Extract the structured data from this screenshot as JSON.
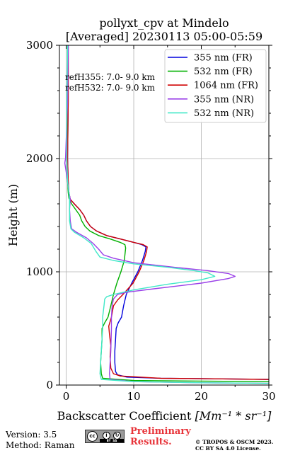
{
  "chart_data": {
    "type": "line",
    "title": "pollyxt_cpv at Mindelo",
    "subtitle": "[Averaged] 20230113 05:00-05:59",
    "xlabel": "Backscatter Coefficient",
    "xlabel_unit": "[Mm⁻¹ * sr⁻¹]",
    "ylabel": "Height (m)",
    "xlim": [
      -1,
      30
    ],
    "ylim": [
      0,
      3000
    ],
    "xticks": [
      "0",
      "10",
      "20",
      "30"
    ],
    "yticks": [
      "0",
      "1000",
      "2000",
      "3000"
    ],
    "grid": true,
    "legend_position": "top-right",
    "annotations": [
      "refH355:  7.0- 9.0 km",
      "refH532:  7.0- 9.0 km"
    ],
    "series": [
      {
        "name": "355 nm (FR)",
        "color": "#0000dd",
        "points": [
          [
            0.3,
            3000
          ],
          [
            0.3,
            2500
          ],
          [
            0.2,
            2000
          ],
          [
            0.3,
            1800
          ],
          [
            0.4,
            1700
          ],
          [
            0.6,
            1640
          ],
          [
            1.2,
            1600
          ],
          [
            2,
            1550
          ],
          [
            2.6,
            1500
          ],
          [
            3,
            1450
          ],
          [
            3.6,
            1400
          ],
          [
            4.5,
            1360
          ],
          [
            6,
            1320
          ],
          [
            8,
            1290
          ],
          [
            10,
            1260
          ],
          [
            11.2,
            1240
          ],
          [
            11.8,
            1220
          ],
          [
            11.7,
            1180
          ],
          [
            11.3,
            1100
          ],
          [
            10.6,
            1000
          ],
          [
            9.7,
            900
          ],
          [
            8.9,
            800
          ],
          [
            8.5,
            700
          ],
          [
            8.2,
            600
          ],
          [
            7.7,
            550
          ],
          [
            7.4,
            500
          ],
          [
            7.3,
            400
          ],
          [
            7.2,
            300
          ],
          [
            7.2,
            200
          ],
          [
            7.3,
            120
          ],
          [
            7.6,
            90
          ],
          [
            9,
            70
          ],
          [
            14,
            60
          ],
          [
            22,
            55
          ],
          [
            30,
            50
          ]
        ]
      },
      {
        "name": "532 nm (FR)",
        "color": "#00b000",
        "points": [
          [
            0.2,
            3000
          ],
          [
            0.2,
            2500
          ],
          [
            0.1,
            2000
          ],
          [
            0.2,
            1800
          ],
          [
            0.3,
            1700
          ],
          [
            0.4,
            1650
          ],
          [
            0.8,
            1600
          ],
          [
            1.4,
            1550
          ],
          [
            2,
            1500
          ],
          [
            2.3,
            1450
          ],
          [
            2.8,
            1400
          ],
          [
            3.5,
            1360
          ],
          [
            4.8,
            1320
          ],
          [
            6.5,
            1290
          ],
          [
            8,
            1260
          ],
          [
            8.7,
            1240
          ],
          [
            8.8,
            1210
          ],
          [
            8.6,
            1100
          ],
          [
            8.1,
            1000
          ],
          [
            7.5,
            900
          ],
          [
            7,
            800
          ],
          [
            6.6,
            700
          ],
          [
            6.2,
            600
          ],
          [
            5.7,
            550
          ],
          [
            5.3,
            500
          ],
          [
            5.3,
            400
          ],
          [
            5.2,
            300
          ],
          [
            5.1,
            200
          ],
          [
            5.2,
            100
          ],
          [
            5.4,
            60
          ],
          [
            10,
            40
          ],
          [
            20,
            35
          ],
          [
            30,
            30
          ]
        ]
      },
      {
        "name": "1064 nm (FR)",
        "color": "#d00000",
        "points": [
          [
            0.3,
            3000
          ],
          [
            0.3,
            2500
          ],
          [
            0.2,
            2000
          ],
          [
            0.3,
            1800
          ],
          [
            0.4,
            1700
          ],
          [
            0.6,
            1640
          ],
          [
            1.2,
            1600
          ],
          [
            2,
            1550
          ],
          [
            2.6,
            1500
          ],
          [
            3,
            1450
          ],
          [
            3.6,
            1400
          ],
          [
            4.5,
            1360
          ],
          [
            6,
            1320
          ],
          [
            8,
            1290
          ],
          [
            10,
            1260
          ],
          [
            11.4,
            1240
          ],
          [
            12,
            1220
          ],
          [
            11.9,
            1180
          ],
          [
            11.5,
            1100
          ],
          [
            10.8,
            1000
          ],
          [
            9.9,
            900
          ],
          [
            8.4,
            800
          ],
          [
            7.6,
            750
          ],
          [
            7,
            700
          ],
          [
            6.7,
            600
          ],
          [
            6.5,
            560
          ],
          [
            6.3,
            520
          ],
          [
            6.4,
            450
          ],
          [
            6.6,
            350
          ],
          [
            6.5,
            250
          ],
          [
            6.6,
            150
          ],
          [
            7,
            100
          ],
          [
            8,
            80
          ],
          [
            14,
            60
          ],
          [
            22,
            55
          ],
          [
            30,
            50
          ]
        ]
      },
      {
        "name": "355 nm (NR)",
        "color": "#9a40e8",
        "points": [
          [
            0.3,
            3000
          ],
          [
            0.2,
            2500
          ],
          [
            -0.1,
            2000
          ],
          [
            -0.2,
            1960
          ],
          [
            0.2,
            1800
          ],
          [
            0.4,
            1700
          ],
          [
            0.6,
            1640
          ],
          [
            0.5,
            1550
          ],
          [
            0.6,
            1450
          ],
          [
            0.8,
            1380
          ],
          [
            1.5,
            1350
          ],
          [
            3,
            1300
          ],
          [
            4,
            1250
          ],
          [
            4.8,
            1200
          ],
          [
            5.5,
            1150
          ],
          [
            7,
            1120
          ],
          [
            10,
            1080
          ],
          [
            16,
            1040
          ],
          [
            21,
            1010
          ],
          [
            24,
            985
          ],
          [
            25,
            960
          ],
          [
            24,
            940
          ],
          [
            20,
            900
          ],
          [
            13,
            850
          ],
          [
            9,
            820
          ],
          [
            7.6,
            800
          ],
          [
            7,
            760
          ],
          [
            6.8,
            700
          ],
          [
            6.7,
            600
          ],
          [
            6.7,
            500
          ],
          [
            6.6,
            300
          ],
          [
            6.4,
            100
          ],
          [
            6.5,
            50
          ],
          [
            10,
            30
          ],
          [
            20,
            20
          ],
          [
            30,
            15
          ]
        ]
      },
      {
        "name": "532 nm (NR)",
        "color": "#40e8c8",
        "points": [
          [
            0.2,
            3000
          ],
          [
            0.1,
            2500
          ],
          [
            0.1,
            2000
          ],
          [
            0.2,
            1800
          ],
          [
            0.4,
            1700
          ],
          [
            0.5,
            1640
          ],
          [
            0.5,
            1550
          ],
          [
            0.5,
            1450
          ],
          [
            0.7,
            1380
          ],
          [
            1.2,
            1350
          ],
          [
            2.6,
            1300
          ],
          [
            3.7,
            1250
          ],
          [
            4.4,
            1180
          ],
          [
            5,
            1130
          ],
          [
            7,
            1100
          ],
          [
            10,
            1070
          ],
          [
            15,
            1040
          ],
          [
            19,
            1010
          ],
          [
            21,
            990
          ],
          [
            22,
            960
          ],
          [
            20,
            930
          ],
          [
            15,
            890
          ],
          [
            10,
            840
          ],
          [
            7,
            800
          ],
          [
            6,
            780
          ],
          [
            5.7,
            760
          ],
          [
            5.6,
            700
          ],
          [
            5.4,
            600
          ],
          [
            5.4,
            500
          ],
          [
            5.2,
            300
          ],
          [
            5,
            100
          ],
          [
            5.2,
            50
          ],
          [
            10,
            30
          ],
          [
            20,
            20
          ],
          [
            30,
            15
          ]
        ]
      }
    ]
  },
  "footer": {
    "version": "Version: 3.5",
    "method": "Method: Raman",
    "preliminary_line1": "Preliminary",
    "preliminary_line2": "Results.",
    "copyright_line1": "© TROPOS & OSCM 2023.",
    "copyright_line2": "CC BY SA 4.0 License."
  }
}
